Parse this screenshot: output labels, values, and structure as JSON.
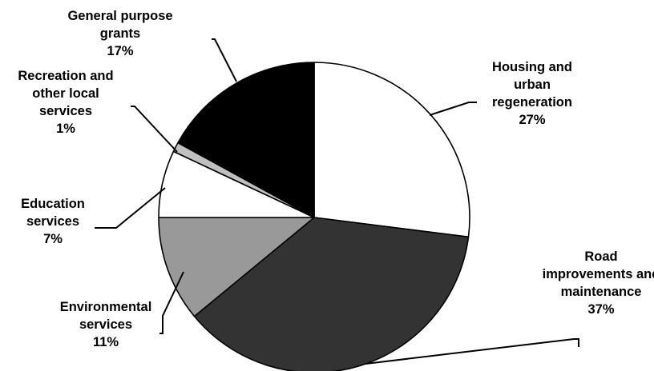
{
  "chart_data": {
    "type": "pie",
    "title": "",
    "start_angle_deg": 0,
    "direction": "clockwise",
    "slices": [
      {
        "name": "Housing and urban regeneration",
        "label_lines": [
          "Housing and",
          "urban",
          "regeneration",
          "27%"
        ],
        "value": 27,
        "color": "#ffffff"
      },
      {
        "name": "Road improvements and maintenance",
        "label_lines": [
          "Road",
          "improvements and",
          "maintenance",
          "37%"
        ],
        "value": 37,
        "color": "#333333"
      },
      {
        "name": "Environmental services",
        "label_lines": [
          "Environmental",
          "services",
          "11%"
        ],
        "value": 11,
        "color": "#999999"
      },
      {
        "name": "Education services",
        "label_lines": [
          "Education",
          "services",
          "7%"
        ],
        "value": 7,
        "color": "#ffffff"
      },
      {
        "name": "Recreation and other local services",
        "label_lines": [
          "Recreation and",
          "other local",
          "services",
          "1%"
        ],
        "value": 1,
        "color": "#c0c0c0"
      },
      {
        "name": "General purpose grants",
        "label_lines": [
          "General purpose",
          "grants",
          "17%"
        ],
        "value": 17,
        "color": "#000000"
      }
    ]
  }
}
